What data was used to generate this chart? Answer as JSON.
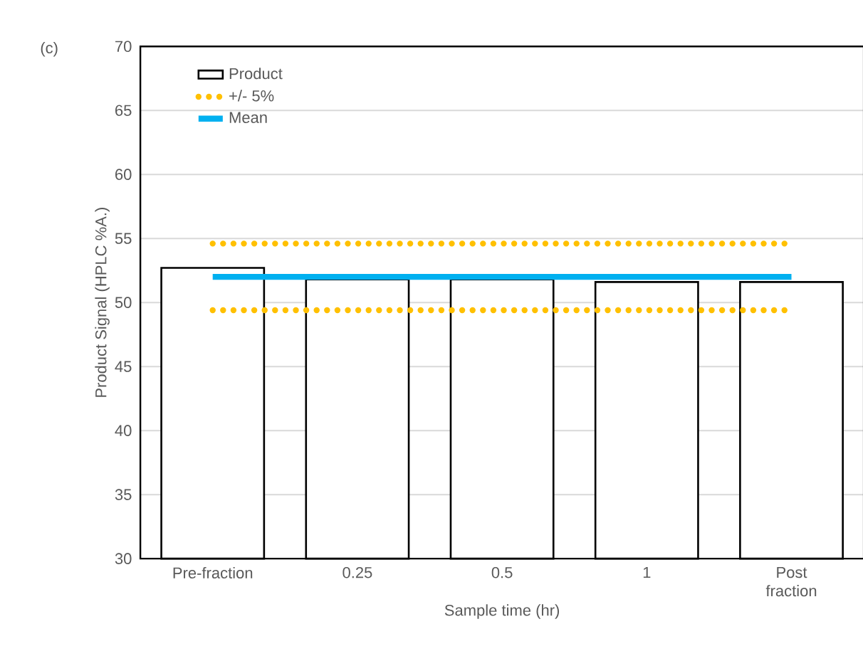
{
  "chart_data": {
    "type": "bar",
    "xlabel": "Sample time (hr)",
    "ylabel": "Product Signal (HPLC %A.)",
    "annotations": [
      "(c)"
    ],
    "categories": [
      "Pre-fraction",
      "0.25",
      "0.5",
      "1",
      "Post fraction"
    ],
    "ylim": [
      30,
      70
    ],
    "yticks": [
      30,
      35,
      40,
      45,
      50,
      55,
      60,
      65,
      70
    ],
    "grid": "y",
    "legend": "top left",
    "series": [
      {
        "name": "Product",
        "color": "#000000",
        "values": [
          52.7,
          51.8,
          51.8,
          51.6,
          51.6
        ]
      },
      {
        "name": "+/- 5%",
        "type": "line",
        "line_style": "dotted",
        "color": "#ffc000",
        "values": [
          54.6,
          54.6,
          54.6,
          54.6,
          54.6
        ]
      },
      {
        "type": "line",
        "line_style": "dotted",
        "color": "#ffc000",
        "values": [
          49.4,
          49.4,
          49.4,
          49.4,
          49.4
        ]
      },
      {
        "name": "Mean",
        "type": "line",
        "line_style": "solid",
        "color": "#00b0f0",
        "values": [
          52,
          52,
          52,
          52,
          52
        ]
      }
    ]
  }
}
